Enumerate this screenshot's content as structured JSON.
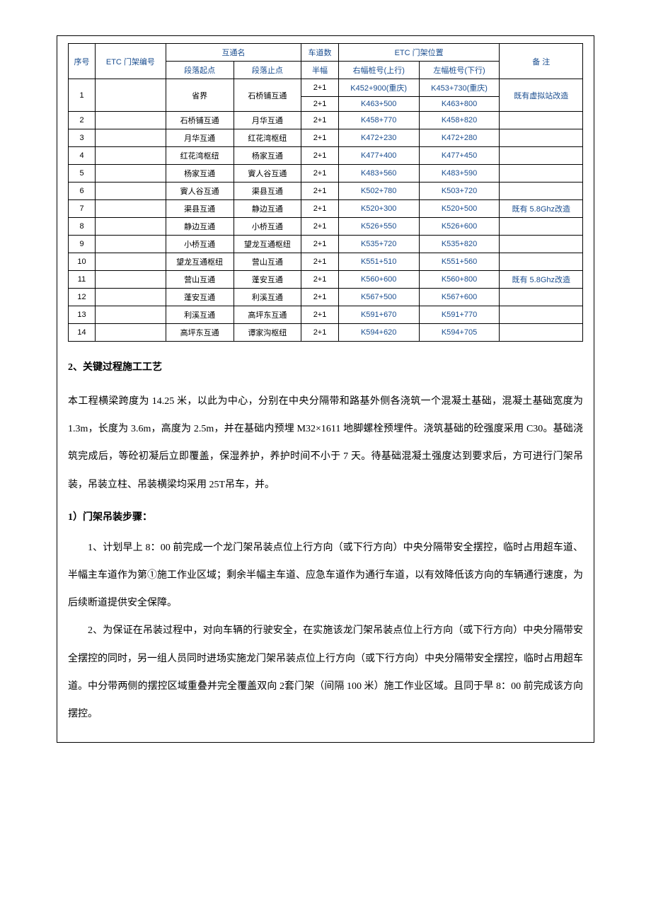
{
  "table": {
    "headers": {
      "seq": "序号",
      "etc_gate": "ETC 门架编号",
      "interchange_name": "互通名",
      "interchange_start": "段落起点",
      "interchange_end": "段落止点",
      "lanes": "车道数",
      "lanes_sub": "半幅",
      "gate_position": "ETC 门架位置",
      "gate_right": "右幅桩号(上行)",
      "gate_left": "左幅桩号(下行)",
      "remark": "备  注"
    },
    "row0": {
      "lanes": "2+1",
      "right": "K452+900(重庆)",
      "left": "K453+730(重庆)"
    },
    "rows": [
      {
        "seq": "1",
        "start": "省界",
        "end": "石桥铺互通",
        "lanes": "2+1",
        "right": "K463+500",
        "left": "K463+800",
        "remark": "既有虚拟站改造"
      },
      {
        "seq": "2",
        "start": "石桥铺互通",
        "end": "月华互通",
        "lanes": "2+1",
        "right": "K458+770",
        "left": "K458+820",
        "remark": ""
      },
      {
        "seq": "3",
        "start": "月华互通",
        "end": "红花湾枢纽",
        "lanes": "2+1",
        "right": "K472+230",
        "left": "K472+280",
        "remark": ""
      },
      {
        "seq": "4",
        "start": "红花湾枢纽",
        "end": "杨家互通",
        "lanes": "2+1",
        "right": "K477+400",
        "left": "K477+450",
        "remark": ""
      },
      {
        "seq": "5",
        "start": "杨家互通",
        "end": "賨人谷互通",
        "lanes": "2+1",
        "right": "K483+560",
        "left": "K483+590",
        "remark": ""
      },
      {
        "seq": "6",
        "start": "賨人谷互通",
        "end": "渠县互通",
        "lanes": "2+1",
        "right": "K502+780",
        "left": "K503+720",
        "remark": ""
      },
      {
        "seq": "7",
        "start": "渠县互通",
        "end": "静边互通",
        "lanes": "2+1",
        "right": "K520+300",
        "left": "K520+500",
        "remark": "既有 5.8Ghz改造"
      },
      {
        "seq": "8",
        "start": "静边互通",
        "end": "小桥互通",
        "lanes": "2+1",
        "right": "K526+550",
        "left": "K526+600",
        "remark": ""
      },
      {
        "seq": "9",
        "start": "小桥互通",
        "end": "望龙互通枢纽",
        "lanes": "2+1",
        "right": "K535+720",
        "left": "K535+820",
        "remark": ""
      },
      {
        "seq": "10",
        "start": "望龙互通枢纽",
        "end": "营山互通",
        "lanes": "2+1",
        "right": "K551+510",
        "left": "K551+560",
        "remark": ""
      },
      {
        "seq": "11",
        "start": "营山互通",
        "end": "蓬安互通",
        "lanes": "2+1",
        "right": "K560+600",
        "left": "K560+800",
        "remark": "既有 5.8Ghz改造"
      },
      {
        "seq": "12",
        "start": "蓬安互通",
        "end": "利溪互通",
        "lanes": "2+1",
        "right": "K567+500",
        "left": "K567+600",
        "remark": ""
      },
      {
        "seq": "13",
        "start": "利溪互通",
        "end": "高坪东互通",
        "lanes": "2+1",
        "right": "K591+670",
        "left": "K591+770",
        "remark": ""
      },
      {
        "seq": "14",
        "start": "高坪东互通",
        "end": "谭家沟枢纽",
        "lanes": "2+1",
        "right": "K594+620",
        "left": "K594+705",
        "remark": ""
      }
    ]
  },
  "section2": {
    "title": "2、关键过程施工工艺",
    "para": "本工程横梁跨度为 14.25 米，以此为中心，分别在中央分隔带和路基外侧各浇筑一个混凝土基础，混凝土基础宽度为 1.3m，长度为 3.6m，高度为 2.5m，并在基础内预埋 M32×1611 地脚螺栓预埋件。浇筑基础的砼强度采用 C30。基础浇筑完成后，等砼初凝后立即覆盖，保湿养护，养护时间不小于 7 天。待基础混凝土强度达到要求后，方可进行门架吊装，吊装立柱、吊装横梁均采用 25T吊车，并。"
  },
  "subsection": {
    "title": "1）门架吊装步骤：",
    "p1": "1、计划早上 8：00 前完成一个龙门架吊装点位上行方向（或下行方向）中央分隔带安全摆控，临时占用超车道、半幅主车道作为第①施工作业区域；剩余半幅主车道、应急车道作为通行车道，以有效降低该方向的车辆通行速度，为后续断道提供安全保障。",
    "p2": "2、为保证在吊装过程中，对向车辆的行驶安全，在实施该龙门架吊装点位上行方向（或下行方向）中央分隔带安全摆控的同时，另一组人员同时进场实施龙门架吊装点位上行方向（或下行方向）中央分隔带安全摆控，临时占用超车道。中分带两侧的摆控区域重叠并完全覆盖双向 2套门架（间隔 100 米）施工作业区域。且同于早 8：00 前完成该方向摆控。"
  }
}
